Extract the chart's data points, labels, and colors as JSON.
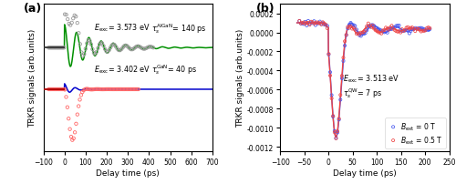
{
  "panel_a": {
    "xlim": [
      -100,
      700
    ],
    "xticks": [
      -100,
      0,
      100,
      200,
      300,
      400,
      500,
      600,
      700
    ],
    "xlabel": "Delay time (ps)",
    "ylabel": "TRKR signals (arb.units)",
    "label": "(a)",
    "ylim": [
      -1.7,
      1.5
    ]
  },
  "panel_b": {
    "xlim": [
      -100,
      250
    ],
    "xticks": [
      -100,
      -50,
      0,
      50,
      100,
      150,
      200,
      250
    ],
    "ylim": [
      -0.00125,
      0.0003
    ],
    "yticks": [
      -0.0012,
      -0.001,
      -0.0008,
      -0.0006,
      -0.0004,
      -0.0002,
      0.0,
      0.0002
    ],
    "xlabel": "Delay time (ps)",
    "ylabel": "TRKR signals (arb.units)",
    "label": "(b)",
    "legend1": "$B_{\\mathrm{ext}}$ = 0 T",
    "legend2": "$B_{\\mathrm{ext}}$ = 0.5 T"
  },
  "colors": {
    "green": "#009000",
    "black": "#111111",
    "dark_red": "#CC0000",
    "blue": "#0000CC",
    "gray": "#888888",
    "pink": "#FF8888",
    "blue2": "#4466FF",
    "red2": "#FF4444"
  }
}
